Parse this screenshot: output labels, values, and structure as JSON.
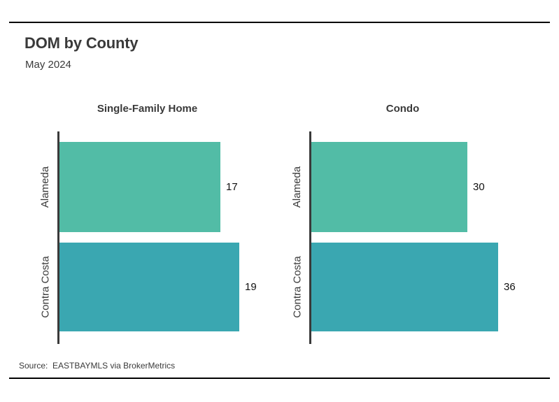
{
  "header": {
    "title": "DOM by County",
    "subtitle": "May 2024"
  },
  "footer": {
    "source": "Source:  EASTBAYMLS via BrokerMetrics"
  },
  "colors": {
    "bar_alameda": "#52bca6",
    "bar_contra_costa": "#3aa7b1",
    "axis": "#3a3a3a",
    "heading_text": "#3a3a3a",
    "value_text": "#111111",
    "rule": "#000000",
    "background": "#ffffff"
  },
  "chart_data": [
    {
      "type": "bar",
      "orientation": "horizontal",
      "title": "Single-Family Home",
      "categories": [
        "Alameda",
        "Contra Costa"
      ],
      "values": [
        17,
        19
      ],
      "bar_colors": [
        "#52bca6",
        "#3aa7b1"
      ],
      "xlim": [
        0,
        19
      ],
      "grid": false,
      "legend": false,
      "xlabel": "",
      "ylabel": ""
    },
    {
      "type": "bar",
      "orientation": "horizontal",
      "title": "Condo",
      "categories": [
        "Alameda",
        "Contra Costa"
      ],
      "values": [
        30,
        36
      ],
      "bar_colors": [
        "#52bca6",
        "#3aa7b1"
      ],
      "xlim": [
        0,
        36
      ],
      "grid": false,
      "legend": false,
      "xlabel": "",
      "ylabel": ""
    }
  ]
}
